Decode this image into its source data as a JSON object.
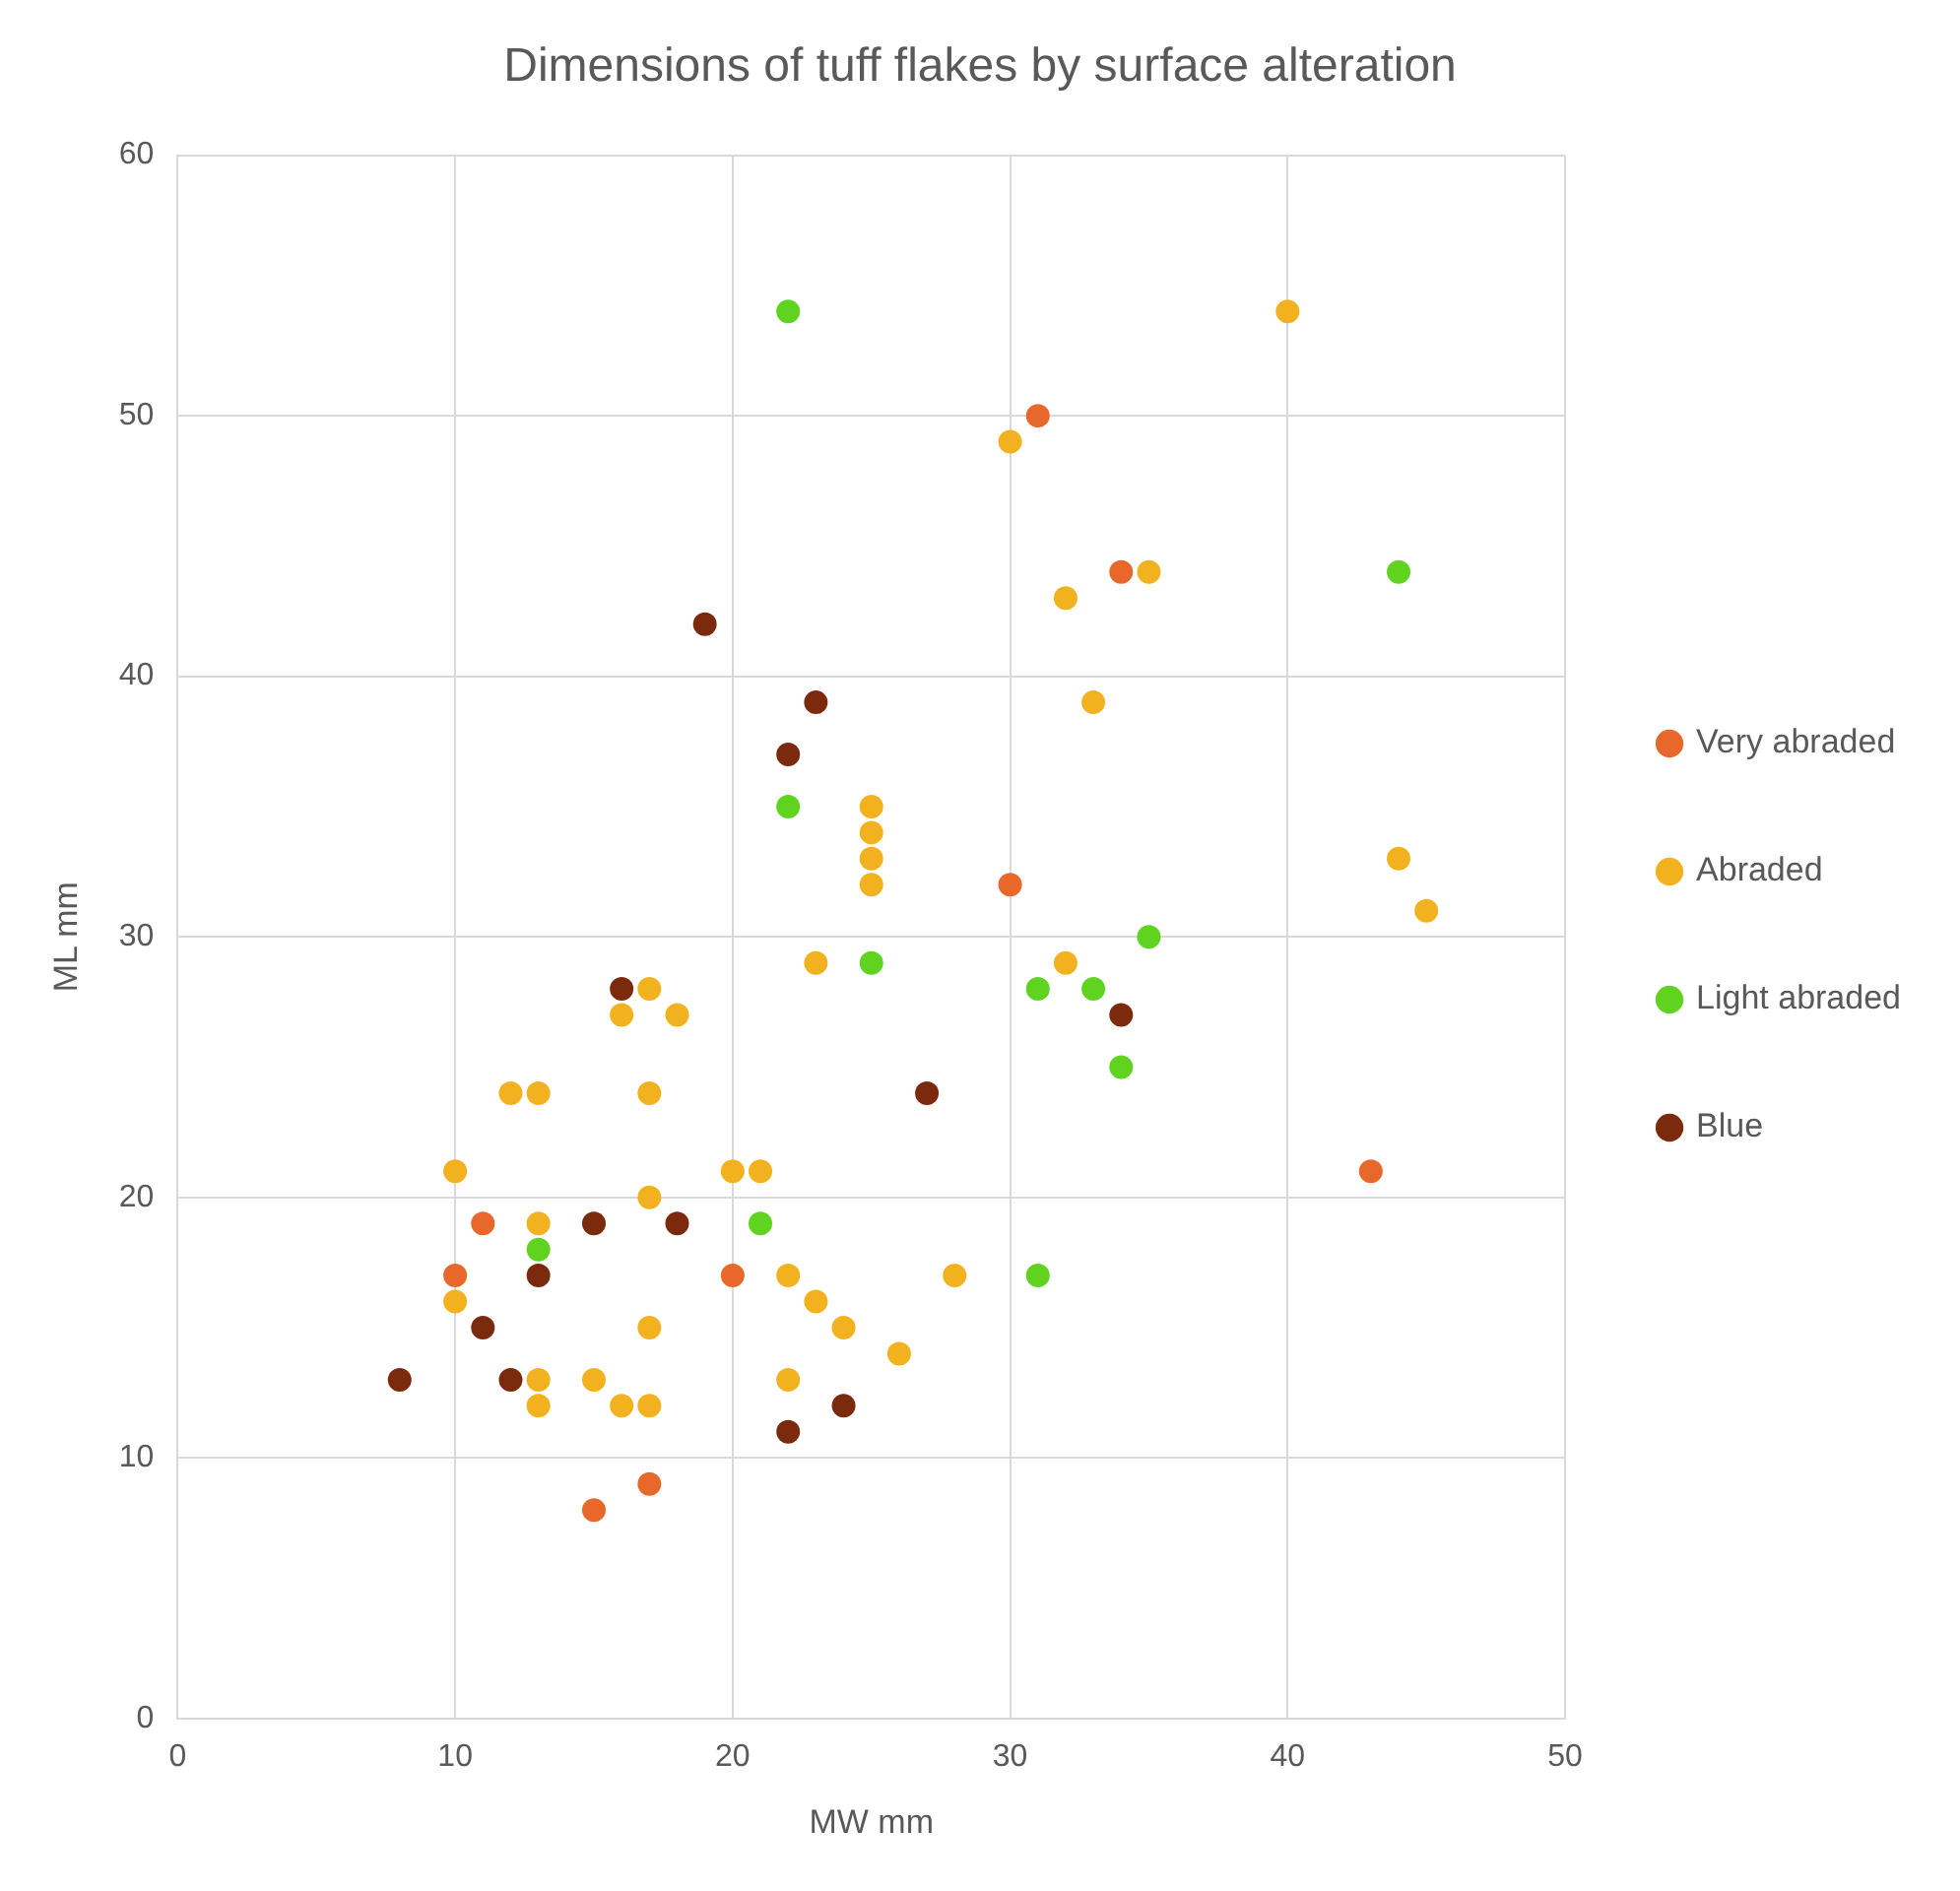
{
  "chart_data": {
    "type": "scatter",
    "title": "Dimensions of tuff flakes by surface alteration",
    "xlabel": "MW mm",
    "ylabel": "ML mm",
    "xlim": [
      0,
      50
    ],
    "xticks": [
      0,
      10,
      20,
      30,
      40,
      50
    ],
    "ylim": [
      0,
      60
    ],
    "yticks": [
      0,
      10,
      20,
      30,
      40,
      50,
      60
    ],
    "grid": true,
    "legend": "right",
    "marker": "circle",
    "series": [
      {
        "name": "Very abraded",
        "color": "#e8672a",
        "x": [
          10,
          11,
          15,
          17,
          20,
          30,
          31,
          34,
          43
        ],
        "values": [
          17,
          19,
          8,
          9,
          17,
          32,
          50,
          44,
          21
        ]
      },
      {
        "name": "Abraded",
        "color": "#f2b21f",
        "x": [
          10,
          10,
          12,
          13,
          13,
          13,
          13,
          15,
          16,
          16,
          17,
          17,
          17,
          17,
          17,
          18,
          20,
          21,
          22,
          22,
          23,
          23,
          24,
          25,
          25,
          25,
          25,
          26,
          28,
          30,
          32,
          32,
          33,
          35,
          40,
          44,
          45
        ],
        "values": [
          21,
          16,
          24,
          24,
          19,
          13,
          12,
          13,
          27,
          12,
          28,
          24,
          20,
          15,
          12,
          27,
          21,
          21,
          17,
          13,
          29,
          16,
          15,
          35,
          34,
          33,
          32,
          14,
          17,
          49,
          43,
          29,
          39,
          44,
          54,
          33,
          31
        ]
      },
      {
        "name": "Light abraded",
        "color": "#5fd320",
        "x": [
          13,
          21,
          22,
          22,
          25,
          31,
          31,
          33,
          34,
          35,
          44
        ],
        "values": [
          18,
          19,
          54,
          35,
          29,
          28,
          17,
          28,
          25,
          30,
          44
        ]
      },
      {
        "name": "Blue",
        "color": "#7b2a0e",
        "x": [
          8,
          11,
          12,
          13,
          15,
          16,
          18,
          19,
          22,
          22,
          23,
          24,
          27,
          34
        ],
        "values": [
          13,
          15,
          13,
          17,
          19,
          28,
          19,
          42,
          37,
          11,
          39,
          12,
          24,
          27
        ]
      }
    ]
  }
}
